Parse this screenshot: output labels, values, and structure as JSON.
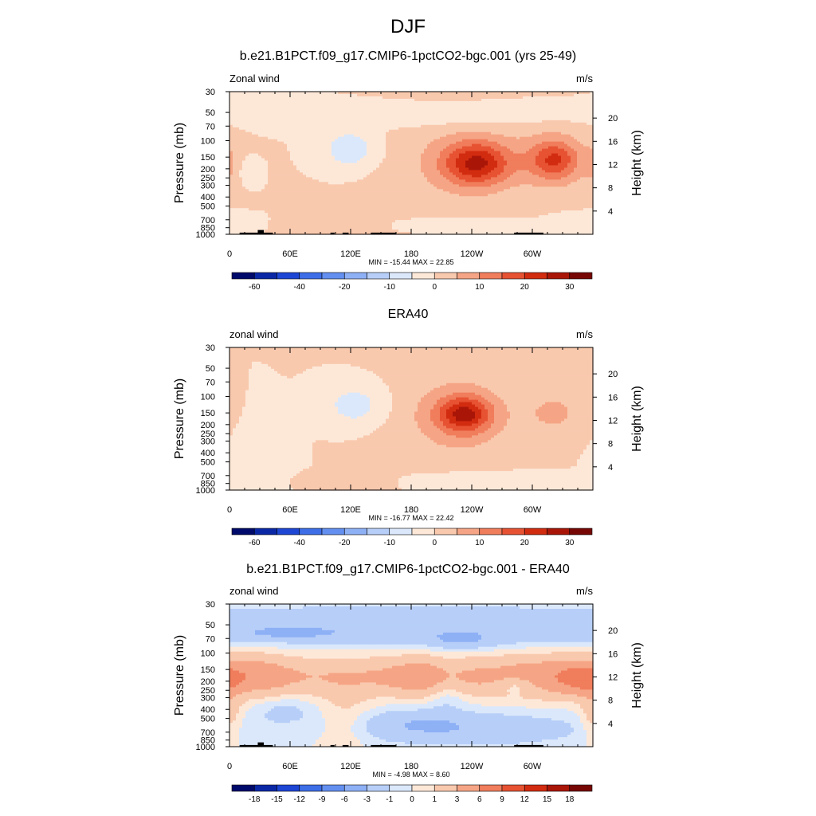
{
  "figure": {
    "title": "DJF"
  },
  "colorbars": {
    "full": [
      "-60",
      "-40",
      "-20",
      "-10",
      "0",
      "10",
      "20",
      "30"
    ],
    "diff": [
      "-18",
      "-15",
      "-12",
      "-9",
      "-6",
      "-3",
      "-1",
      "0",
      "1",
      "3",
      "6",
      "9",
      "12",
      "15",
      "18"
    ]
  },
  "colors": {
    "bins": [
      "#000a6b",
      "#0a28a6",
      "#1d46d4",
      "#3d6ee8",
      "#6390f0",
      "#8eb0f5",
      "#b7cff8",
      "#dbe8fb",
      "#fde8d8",
      "#f9c9ae",
      "#f5a585",
      "#f07d5c",
      "#e65232",
      "#d22c10",
      "#a91608",
      "#770704"
    ]
  },
  "chart_data": [
    {
      "type": "heatmap",
      "title": "b.e21.B1PCT.f09_g17.CMIP6-1pctCO2-bgc.001 (yrs 25-49)",
      "left_label": "Zonal wind",
      "right_label": "m/s",
      "ylabel": "Pressure (mb)",
      "ylabel_right": "Height (km)",
      "xticklabels": [
        "0",
        "60E",
        "120E",
        "180",
        "120W",
        "60W"
      ],
      "yticklabels": [
        "30",
        "50",
        "70",
        "100",
        "150",
        "200",
        "250",
        "300",
        "400",
        "500",
        "700",
        "850",
        "1000"
      ],
      "yticklabels_right": [
        "20",
        "16",
        "12",
        "8",
        "4"
      ],
      "stats": "MIN = -15.44  MAX =  22.85",
      "min": -15.44,
      "max": 22.85,
      "colorbar": "full",
      "fields": [
        {
          "value": 3,
          "lon": 205,
          "p": 165,
          "wlon": 75,
          "wlogp": 1.25
        },
        {
          "value": 9,
          "lon": 243,
          "p": 175,
          "wlon": 42,
          "wlogp": 0.7
        },
        {
          "value": 16,
          "lon": 245,
          "p": 175,
          "wlon": 30,
          "wlogp": 0.5
        },
        {
          "value": 8,
          "lon": 320,
          "p": 160,
          "wlon": 38,
          "wlogp": 0.75
        },
        {
          "value": 13,
          "lon": 322,
          "p": 160,
          "wlon": 22,
          "wlogp": 0.45
        },
        {
          "value": -9,
          "lon": 120,
          "p": 125,
          "wlon": 28,
          "wlogp": 0.5
        },
        {
          "value": 3,
          "lon": 120,
          "p": 820,
          "wlon": 40,
          "wlogp": 0.22
        },
        {
          "value": 4,
          "lon": 0,
          "p": 180,
          "wlon": 8,
          "wlogp": 0.5
        },
        {
          "value": -4,
          "lon": 20,
          "p": 210,
          "wlon": 10,
          "wlogp": 0.3
        },
        {
          "value": -4,
          "lon": 175,
          "p": 55,
          "wlon": 180,
          "wlogp": 0.3
        },
        {
          "value": -5,
          "lon": 225,
          "p": 800,
          "wlon": 60,
          "wlogp": 0.15
        },
        {
          "value": -5,
          "lon": 345,
          "p": 750,
          "wlon": 25,
          "wlogp": 0.2
        }
      ],
      "topography": [
        {
          "lon0": 10,
          "lon1": 43,
          "p": 960
        },
        {
          "lon0": 28,
          "lon1": 34,
          "p": 900
        },
        {
          "lon0": 100,
          "lon1": 104,
          "p": 960
        },
        {
          "lon0": 112,
          "lon1": 118,
          "p": 960
        },
        {
          "lon0": 140,
          "lon1": 165,
          "p": 960
        },
        {
          "lon0": 282,
          "lon1": 311,
          "p": 960
        }
      ]
    },
    {
      "type": "heatmap",
      "title": "ERA40",
      "left_label": "zonal wind",
      "right_label": "m/s",
      "ylabel": "Pressure (mb)",
      "ylabel_right": "Height (km)",
      "xticklabels": [
        "0",
        "60E",
        "120E",
        "180",
        "120W",
        "60W"
      ],
      "yticklabels": [
        "30",
        "50",
        "70",
        "100",
        "150",
        "200",
        "250",
        "300",
        "400",
        "500",
        "700",
        "850",
        "1000"
      ],
      "yticklabels_right": [
        "20",
        "16",
        "12",
        "8",
        "4"
      ],
      "stats": "MIN = -16.77  MAX =  22.42",
      "min": -16.77,
      "max": 22.42,
      "colorbar": "full",
      "fields": [
        {
          "value": 3,
          "lon": 205,
          "p": 165,
          "wlon": 75,
          "wlogp": 1.25
        },
        {
          "value": 9,
          "lon": 232,
          "p": 160,
          "wlon": 40,
          "wlogp": 0.75
        },
        {
          "value": 17,
          "lon": 233,
          "p": 155,
          "wlon": 24,
          "wlogp": 0.4
        },
        {
          "value": 6,
          "lon": 322,
          "p": 150,
          "wlon": 30,
          "wlogp": 0.55
        },
        {
          "value": -8,
          "lon": 125,
          "p": 125,
          "wlon": 32,
          "wlogp": 0.55
        },
        {
          "value": -4,
          "lon": 35,
          "p": 450,
          "wlon": 25,
          "wlogp": 0.9
        },
        {
          "value": 3,
          "lon": 110,
          "p": 800,
          "wlon": 50,
          "wlogp": 0.2
        },
        {
          "value": -4,
          "lon": 240,
          "p": 800,
          "wlon": 70,
          "wlogp": 0.2
        }
      ],
      "topography": []
    },
    {
      "type": "heatmap",
      "title": "b.e21.B1PCT.f09_g17.CMIP6-1pctCO2-bgc.001 - ERA40",
      "left_label": "zonal wind",
      "right_label": "m/s",
      "ylabel": "Pressure (mb)",
      "ylabel_right": "Height (km)",
      "xticklabels": [
        "0",
        "60E",
        "120E",
        "180",
        "120W",
        "60W"
      ],
      "yticklabels": [
        "30",
        "50",
        "70",
        "100",
        "150",
        "200",
        "250",
        "300",
        "400",
        "500",
        "700",
        "850",
        "1000"
      ],
      "yticklabels_right": [
        "20",
        "16",
        "12",
        "8",
        "4"
      ],
      "stats": "MIN = -4.98  MAX =  8.60",
      "min": -4.98,
      "max": 8.6,
      "colorbar": "diff",
      "fields": [
        {
          "value": -2.5,
          "lon": 180,
          "p": 60,
          "wlon": 400,
          "wlogp": 0.32
        },
        {
          "value": -1.5,
          "lon": 180,
          "p": 36,
          "wlon": 400,
          "wlogp": 0.15
        },
        {
          "value": -2,
          "lon": 60,
          "p": 60,
          "wlon": 40,
          "wlogp": 0.15
        },
        {
          "value": -2,
          "lon": 230,
          "p": 75,
          "wlon": 30,
          "wlogp": 0.2
        },
        {
          "value": 3,
          "lon": 180,
          "p": 180,
          "wlon": 400,
          "wlogp": 0.45
        },
        {
          "value": 2,
          "lon": 30,
          "p": 170,
          "wlon": 30,
          "wlogp": 0.5
        },
        {
          "value": 2.5,
          "lon": 195,
          "p": 180,
          "wlon": 35,
          "wlogp": 0.45
        },
        {
          "value": 2.5,
          "lon": 320,
          "p": 175,
          "wlon": 55,
          "wlogp": 0.5
        },
        {
          "value": 4,
          "lon": 350,
          "p": 190,
          "wlon": 22,
          "wlogp": 0.35
        },
        {
          "value": -2,
          "lon": 215,
          "p": 220,
          "wlon": 18,
          "wlogp": 0.6
        },
        {
          "value": -2.5,
          "lon": 285,
          "p": 220,
          "wlon": 20,
          "wlogp": 0.22
        },
        {
          "value": -1.5,
          "lon": 55,
          "p": 420,
          "wlon": 30,
          "wlogp": 0.35
        },
        {
          "value": -2.5,
          "lon": 240,
          "p": 650,
          "wlon": 110,
          "wlogp": 0.4
        },
        {
          "value": -1.5,
          "lon": 180,
          "p": 550,
          "wlon": 50,
          "wlogp": 0.35
        },
        {
          "value": 1.2,
          "lon": 115,
          "p": 500,
          "wlon": 25,
          "wlogp": 0.9
        },
        {
          "value": 2,
          "lon": 0,
          "p": 450,
          "wlon": 12,
          "wlogp": 0.6
        }
      ],
      "topography": [
        {
          "lon0": 10,
          "lon1": 43,
          "p": 960
        },
        {
          "lon0": 28,
          "lon1": 34,
          "p": 900
        },
        {
          "lon0": 100,
          "lon1": 104,
          "p": 960
        },
        {
          "lon0": 112,
          "lon1": 118,
          "p": 960
        },
        {
          "lon0": 140,
          "lon1": 165,
          "p": 960
        },
        {
          "lon0": 282,
          "lon1": 311,
          "p": 960
        }
      ]
    }
  ]
}
